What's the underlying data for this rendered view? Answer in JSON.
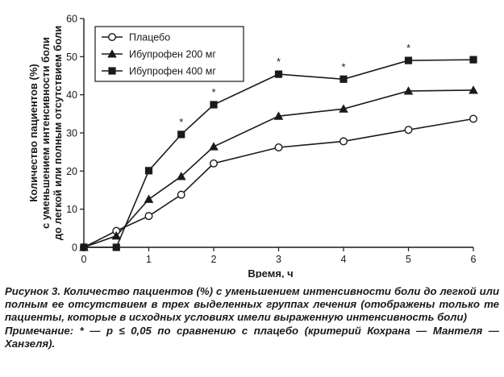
{
  "chart_data": {
    "type": "line",
    "x": [
      0,
      0.5,
      1,
      1.5,
      2,
      3,
      4,
      5,
      6
    ],
    "xlabel": "Время, ч",
    "ylabel_lines": [
      "Количество пациентов (%)",
      "с уменьшением интенсивности боли",
      "до легкой или полным отсутствием боли"
    ],
    "xlim": [
      0,
      6
    ],
    "ylim": [
      0,
      60
    ],
    "xticks": [
      0,
      1,
      2,
      3,
      4,
      5,
      6
    ],
    "xtick_labels": [
      "0",
      "1",
      "2",
      "3",
      "4",
      "5",
      "6"
    ],
    "yticks": [
      0,
      10,
      20,
      30,
      40,
      50,
      60
    ],
    "ytick_labels": [
      "0",
      "10",
      "20",
      "30",
      "40",
      "50",
      "60"
    ],
    "grid": false,
    "legend_position": "top-left",
    "series": [
      {
        "name": "Плацебо",
        "marker": "open-circle",
        "values": [
          0,
          4.3,
          8.2,
          13.8,
          22,
          26.2,
          27.8,
          30.8,
          33.7
        ]
      },
      {
        "name": "Ибупрофен 200 мг",
        "marker": "filled-triangle",
        "values": [
          0,
          3,
          12.6,
          18.6,
          26.4,
          34.4,
          36.3,
          41,
          41.2
        ]
      },
      {
        "name": "Ибупрофен 400 мг",
        "marker": "filled-square",
        "values": [
          0,
          0,
          20.1,
          29.6,
          37.4,
          45.4,
          44.1,
          49,
          49.2
        ]
      }
    ],
    "significance_markers": [
      {
        "x": 1.5,
        "label": "*"
      },
      {
        "x": 2,
        "label": "*"
      },
      {
        "x": 3,
        "label": "*"
      },
      {
        "x": 4,
        "label": "*"
      },
      {
        "x": 5,
        "label": "*"
      }
    ]
  },
  "caption": {
    "main": "Рисунок 3. Количество пациентов (%) с уменьшением интенсивности боли до легкой или полным ее отсутствием в трех выделенных группах лечения (отображены только те пациенты, которые в исходных условиях имели выраженную интенсивность боли)",
    "note": "Примечание: * — p ≤ 0,05 по сравнению с плацебо (критерий Кохрана — Мантеля — Ханзеля)."
  },
  "colors": {
    "ink": "#1a1a1a",
    "background": "#ffffff"
  }
}
